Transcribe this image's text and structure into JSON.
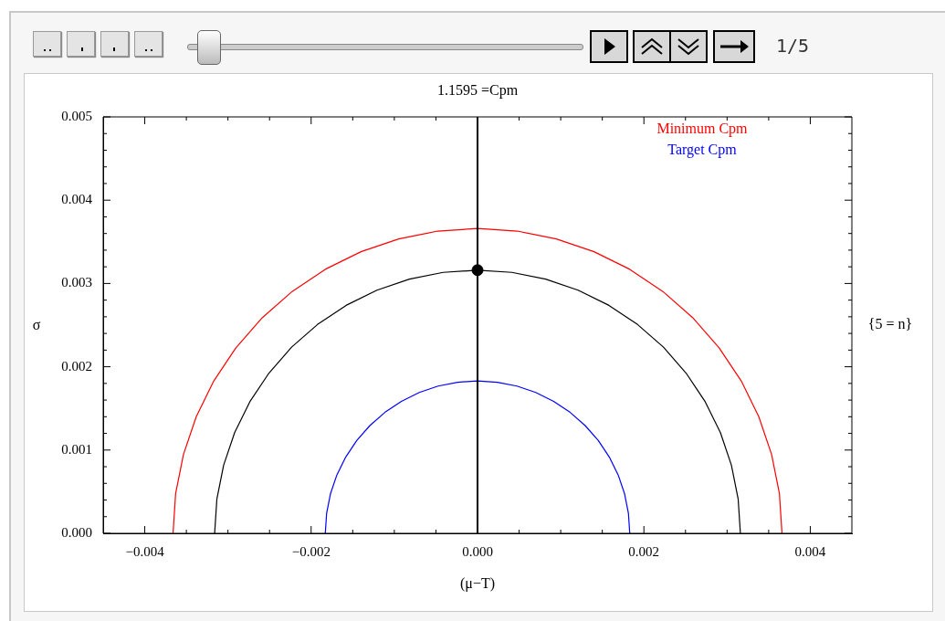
{
  "chart_data": {
    "type": "line",
    "title": "1.1595 =Cpm",
    "xlabel": "(μ−T)",
    "ylabel": "σ",
    "annotations": [
      "{5 = n}",
      "1/5"
    ],
    "legend": "top right",
    "xlim": [
      -0.0045,
      0.0045
    ],
    "xticks": [
      {
        "value": -0.004,
        "label": "−0.004"
      },
      {
        "value": -0.0035,
        "label": null
      },
      {
        "value": -0.003,
        "label": null
      },
      {
        "value": -0.0025,
        "label": null
      },
      {
        "value": -0.002,
        "label": "−0.002"
      },
      {
        "value": -0.0015,
        "label": null
      },
      {
        "value": -0.001,
        "label": null
      },
      {
        "value": -0.0005,
        "label": null
      },
      {
        "value": 0,
        "label": "0.000"
      },
      {
        "value": 0.0005,
        "label": null
      },
      {
        "value": 0.001,
        "label": null
      },
      {
        "value": 0.0015,
        "label": null
      },
      {
        "value": 0.002,
        "label": "0.002"
      },
      {
        "value": 0.0025,
        "label": null
      },
      {
        "value": 0.003,
        "label": null
      },
      {
        "value": 0.0035,
        "label": null
      },
      {
        "value": 0.004,
        "label": "0.004"
      }
    ],
    "ylim": [
      0,
      0.005
    ],
    "yticks": [
      {
        "value": 0,
        "label": "0.000"
      },
      {
        "value": 0.0002,
        "label": null
      },
      {
        "value": 0.0004,
        "label": null
      },
      {
        "value": 0.0006,
        "label": null
      },
      {
        "value": 0.0008,
        "label": null
      },
      {
        "value": 0.001,
        "label": "0.001"
      },
      {
        "value": 0.0012,
        "label": null
      },
      {
        "value": 0.0014,
        "label": null
      },
      {
        "value": 0.0016,
        "label": null
      },
      {
        "value": 0.0018,
        "label": null
      },
      {
        "value": 0.002,
        "label": "0.002"
      },
      {
        "value": 0.0022,
        "label": null
      },
      {
        "value": 0.0024,
        "label": null
      },
      {
        "value": 0.0026,
        "label": null
      },
      {
        "value": 0.0028,
        "label": null
      },
      {
        "value": 0.003,
        "label": "0.003"
      },
      {
        "value": 0.0032,
        "label": null
      },
      {
        "value": 0.0034,
        "label": null
      },
      {
        "value": 0.0036,
        "label": null
      },
      {
        "value": 0.0038,
        "label": null
      },
      {
        "value": 0.004,
        "label": "0.004"
      },
      {
        "value": 0.0042,
        "label": null
      },
      {
        "value": 0.0044,
        "label": null
      },
      {
        "value": 0.0046,
        "label": null
      },
      {
        "value": 0.0048,
        "label": null
      },
      {
        "value": 0.005,
        "label": "0.005"
      }
    ],
    "ref_lines": [
      {
        "axis": "x",
        "value": 0,
        "color": "#000000"
      }
    ],
    "series": [
      {
        "name": "Minimum Cpm",
        "color": "#ff0000",
        "x": [
          -0.00366,
          -0.003629,
          -0.003535,
          -0.003381,
          -0.00317,
          -0.002904,
          -0.002588,
          -0.002228,
          -0.00183,
          -0.001401,
          -0.000947,
          -0.000478,
          0,
          0.000478,
          0.000947,
          0.001401,
          0.00183,
          0.002228,
          0.002588,
          0.002904,
          0.00317,
          0.003381,
          0.003535,
          0.003629,
          0.00366
        ],
        "values": [
          0,
          0.000478,
          0.000947,
          0.001401,
          0.00183,
          0.002228,
          0.002588,
          0.002904,
          0.00317,
          0.003381,
          0.003535,
          0.003629,
          0.00366,
          0.003629,
          0.003535,
          0.003381,
          0.00317,
          0.002904,
          0.002588,
          0.002228,
          0.00183,
          0.001401,
          0.000947,
          0.000478,
          0
        ]
      },
      {
        "name": "Target Cpm",
        "color": "#0000ff",
        "x": [
          -0.00183,
          -0.001814,
          -0.001768,
          -0.001691,
          -0.001585,
          -0.001452,
          -0.001294,
          -0.001114,
          -0.000915,
          -0.0007,
          -0.000474,
          -0.000239,
          0,
          0.000239,
          0.000474,
          0.0007,
          0.000915,
          0.001114,
          0.001294,
          0.001452,
          0.001585,
          0.001691,
          0.001768,
          0.001814,
          0.00183
        ],
        "values": [
          0,
          0.000239,
          0.000474,
          0.0007,
          0.000915,
          0.001114,
          0.001294,
          0.001452,
          0.001585,
          0.001691,
          0.001768,
          0.001814,
          0.00183,
          0.001814,
          0.001768,
          0.001691,
          0.001585,
          0.001452,
          0.001294,
          0.001114,
          0.000915,
          0.0007,
          0.000474,
          0.000239,
          0
        ]
      },
      {
        "color": "#000000",
        "x": [
          -0.00316,
          -0.003133,
          -0.003052,
          -0.00292,
          -0.002737,
          -0.002507,
          -0.002235,
          -0.001924,
          -0.00158,
          -0.001209,
          -0.000818,
          -0.000413,
          0,
          0.000413,
          0.000818,
          0.001209,
          0.00158,
          0.001924,
          0.002235,
          0.002507,
          0.002737,
          0.00292,
          0.003052,
          0.003133,
          0.00316
        ],
        "values": [
          0,
          0.000413,
          0.000818,
          0.001209,
          0.00158,
          0.001924,
          0.002235,
          0.002507,
          0.002737,
          0.00292,
          0.003052,
          0.003133,
          0.00316,
          0.003133,
          0.003052,
          0.00292,
          0.002737,
          0.002507,
          0.002235,
          0.001924,
          0.00158,
          0.001209,
          0.000818,
          0.000413,
          0
        ]
      },
      {
        "type": "scatter",
        "color": "#000000",
        "x": [
          0
        ],
        "values": [
          0.00316
        ]
      }
    ]
  }
}
